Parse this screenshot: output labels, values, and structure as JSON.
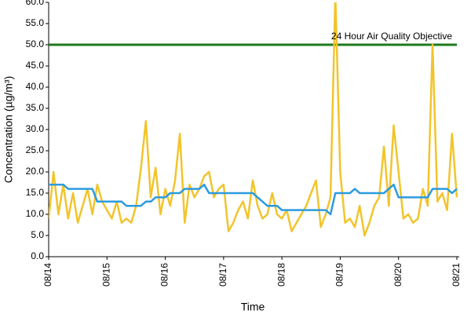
{
  "chart_data": {
    "type": "line",
    "x_label": "Time",
    "y_label": "Concentration (µg/m³)",
    "categories": [
      "08/14",
      null,
      null,
      null,
      null,
      null,
      null,
      null,
      null,
      null,
      null,
      null,
      "08/15",
      null,
      null,
      null,
      null,
      null,
      null,
      null,
      null,
      null,
      null,
      null,
      "08/16",
      null,
      null,
      null,
      null,
      null,
      null,
      null,
      null,
      null,
      null,
      null,
      "08/17",
      null,
      null,
      null,
      null,
      null,
      null,
      null,
      null,
      null,
      null,
      null,
      "08/18",
      null,
      null,
      null,
      null,
      null,
      null,
      null,
      null,
      null,
      null,
      null,
      "08/19",
      null,
      null,
      null,
      null,
      null,
      null,
      null,
      null,
      null,
      null,
      null,
      "08/20",
      null,
      null,
      null,
      null,
      null,
      null,
      null,
      null,
      null,
      null,
      null,
      "08/21"
    ],
    "series": [
      {
        "color": "#f2c42c",
        "values": [
          9,
          20,
          10,
          17,
          9,
          15,
          8,
          12,
          16,
          10,
          17,
          13,
          11,
          9,
          13,
          8,
          9,
          8,
          12,
          21,
          32,
          14,
          21,
          10,
          16,
          12,
          18,
          29,
          8,
          17,
          14,
          16,
          19,
          20,
          14,
          16,
          17,
          6,
          8,
          11,
          13,
          9,
          18,
          12,
          9,
          10,
          15,
          10,
          9,
          11,
          6,
          8,
          10,
          12,
          15,
          18,
          7,
          10,
          14,
          62,
          20,
          8,
          9,
          7,
          12,
          5,
          8,
          12,
          14,
          26,
          12,
          31,
          20,
          9,
          10,
          8,
          9,
          16,
          12,
          50,
          13,
          15,
          11,
          29,
          14
        ]
      },
      {
        "color": "#2b9be0",
        "values": [
          17,
          17,
          17,
          17,
          16,
          16,
          16,
          16,
          16,
          16,
          13,
          13,
          13,
          13,
          13,
          13,
          12,
          12,
          12,
          12,
          13,
          13,
          14,
          14,
          14,
          15,
          15,
          15,
          16,
          16,
          16,
          16,
          17,
          15,
          15,
          15,
          15,
          15,
          15,
          15,
          15,
          15,
          15,
          14,
          13,
          12,
          12,
          12,
          11,
          11,
          11,
          11,
          11,
          11,
          11,
          11,
          11,
          11,
          10,
          15,
          15,
          15,
          15,
          16,
          15,
          15,
          15,
          15,
          15,
          15,
          16,
          17,
          14,
          14,
          14,
          14,
          14,
          14,
          14,
          16,
          16,
          16,
          16,
          15,
          16
        ]
      }
    ],
    "objective": {
      "label": "24 Hour Air Quality Objective",
      "value": 50,
      "color": "#1e7a1e"
    },
    "ylim": [
      0,
      60
    ],
    "yticks": [
      {
        "value": 0,
        "label": "0.0"
      },
      {
        "value": 5,
        "label": "5.0"
      },
      {
        "value": 10,
        "label": "10.0"
      },
      {
        "value": 15,
        "label": "15.0"
      },
      {
        "value": 20,
        "label": "20.0"
      },
      {
        "value": 25,
        "label": "25.0"
      },
      {
        "value": 30,
        "label": "30.0"
      },
      {
        "value": 35,
        "label": "35.0"
      },
      {
        "value": 40,
        "label": "40.0"
      },
      {
        "value": 45,
        "label": "45.0"
      },
      {
        "value": 50,
        "label": "50.0"
      },
      {
        "value": 55,
        "label": "55.0"
      },
      {
        "value": 60,
        "label": "60.0"
      }
    ],
    "grid": false
  }
}
